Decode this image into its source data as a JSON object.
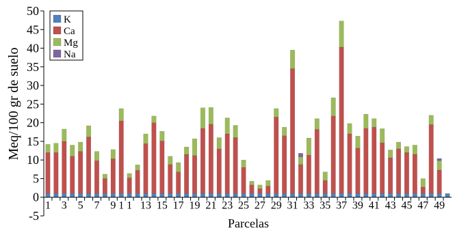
{
  "chart_data": {
    "type": "bar",
    "stacked": true,
    "xlabel": "Parcelas",
    "ylabel": "Meq/100 gr de suelo",
    "ylim": [
      -5,
      50
    ],
    "yticks": [
      -5,
      0,
      5,
      10,
      15,
      20,
      25,
      30,
      35,
      40,
      45,
      50
    ],
    "grid": false,
    "legend_position": "top-left",
    "categories": [
      1,
      2,
      3,
      4,
      5,
      6,
      7,
      8,
      9,
      10,
      11,
      12,
      13,
      14,
      15,
      16,
      17,
      18,
      19,
      20,
      21,
      22,
      23,
      24,
      25,
      26,
      27,
      28,
      29,
      30,
      31,
      32,
      33,
      34,
      35,
      36,
      37,
      38,
      39,
      40,
      41,
      42,
      43,
      44,
      45,
      46,
      47,
      48,
      49,
      50
    ],
    "tick_labels": [
      "1",
      "",
      "3",
      "",
      "5",
      "",
      "7",
      "",
      "9",
      "1",
      "1",
      "",
      "13",
      "",
      "15",
      "",
      "17",
      "",
      "19",
      "",
      "21",
      "",
      "23",
      "",
      "25",
      "",
      "27",
      "",
      "29",
      "",
      "31",
      "",
      "33",
      "",
      "35",
      "",
      "37",
      "",
      "39",
      "",
      "41",
      "",
      "43",
      "",
      "45",
      "",
      "47",
      "",
      "49",
      ""
    ],
    "series": [
      {
        "name": "K",
        "color": "#4f81bd",
        "values": [
          1,
          1,
          1,
          1,
          1,
          1,
          1,
          1,
          1,
          1,
          1,
          1,
          1,
          1,
          1,
          1,
          1,
          1,
          1,
          1,
          1,
          1,
          1,
          1,
          1,
          1,
          1,
          1,
          1,
          1,
          1,
          1,
          1,
          1,
          1,
          1,
          1,
          1,
          1,
          1,
          1,
          1,
          1,
          1,
          1,
          1,
          1,
          1,
          1,
          1
        ]
      },
      {
        "name": "Ca",
        "color": "#c0504d",
        "values": [
          11,
          11,
          14,
          10,
          11.3,
          15.2,
          8.8,
          4,
          9.3,
          19.5,
          4.2,
          6.2,
          13.4,
          19,
          14.1,
          7.8,
          5.8,
          10.5,
          10.2,
          17.5,
          18.6,
          12,
          16,
          15,
          7,
          2.3,
          1.3,
          2,
          20.5,
          15.5,
          33.5,
          7.8,
          10.3,
          17.2,
          3.5,
          20.8,
          39.3,
          16,
          12.2,
          17.5,
          17.8,
          13.6,
          9.6,
          12,
          11,
          10.5,
          1.7,
          18.5,
          6.3,
          0
        ]
      },
      {
        "name": "Mg",
        "color": "#9bbb59",
        "values": [
          2.2,
          2.5,
          3.3,
          3,
          2.5,
          3,
          2.5,
          1.2,
          2.5,
          3.3,
          1.2,
          1.5,
          2.6,
          1.8,
          2.6,
          2.2,
          2.5,
          2,
          4.5,
          5.5,
          4.5,
          3,
          4.3,
          3.3,
          2,
          1,
          1,
          1.5,
          2.3,
          2.3,
          5,
          2,
          4.6,
          2.9,
          2.3,
          4.9,
          7,
          2.8,
          3.2,
          3.8,
          2.3,
          3.8,
          2.1,
          1.8,
          1.6,
          2.5,
          2.3,
          2.5,
          2.5,
          0
        ]
      },
      {
        "name": "Na",
        "color": "#8064a2",
        "values": [
          0,
          0,
          0,
          0,
          0,
          0,
          0,
          0,
          0,
          0,
          0,
          0,
          0,
          0,
          0,
          0,
          0,
          0,
          0,
          0,
          0,
          0,
          0,
          0,
          0,
          0,
          0,
          0,
          0,
          0,
          0,
          1,
          0,
          0,
          0,
          0,
          0,
          0,
          0,
          0,
          0,
          0,
          0,
          0,
          0,
          0,
          0,
          0,
          0.6,
          0
        ]
      }
    ]
  }
}
